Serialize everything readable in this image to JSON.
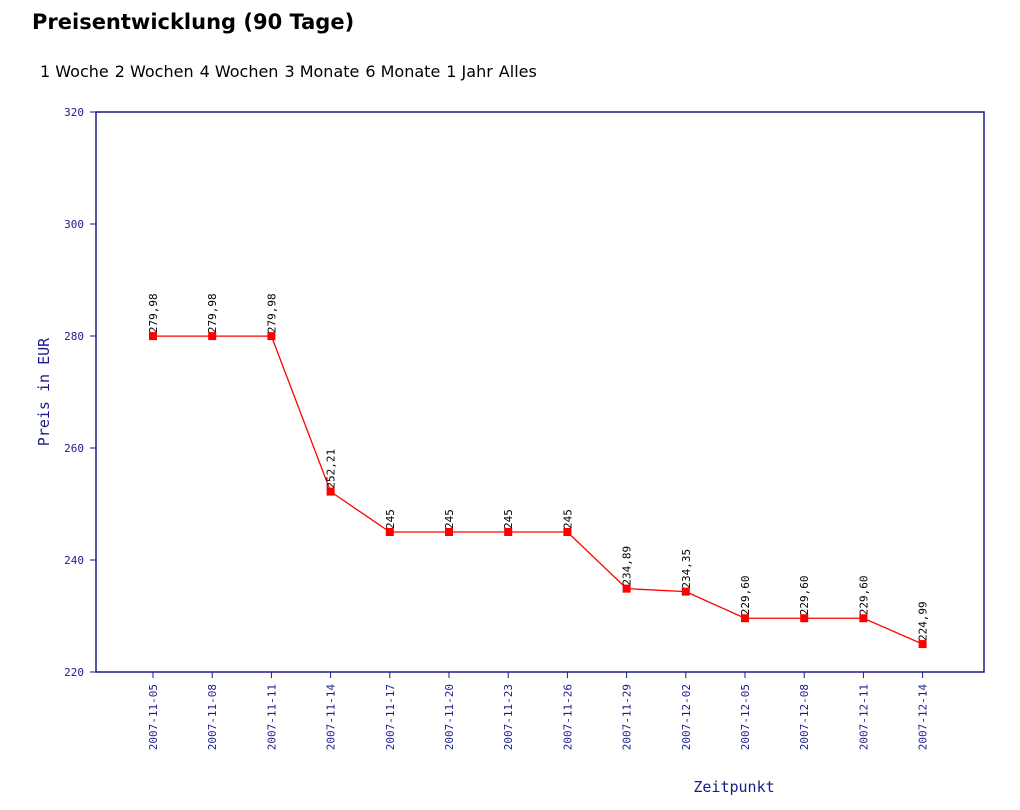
{
  "title": "Preisentwicklung (90 Tage)",
  "range_links": [
    "1 Woche",
    "2 Wochen",
    "4 Wochen",
    "3 Monate",
    "6 Monate",
    "1 Jahr",
    "Alles"
  ],
  "colors": {
    "axis": "#1a1a8c",
    "series": "#ff0000"
  },
  "chart_data": {
    "type": "line",
    "title": "",
    "xlabel": "Zeitpunkt",
    "ylabel": "Preis in EUR",
    "ylim": [
      220,
      320
    ],
    "yticks": [
      "220",
      "240",
      "260",
      "280",
      "300",
      "320"
    ],
    "x": [
      "2007-11-05",
      "2007-11-08",
      "2007-11-11",
      "2007-11-14",
      "2007-11-17",
      "2007-11-20",
      "2007-11-23",
      "2007-11-26",
      "2007-11-29",
      "2007-12-02",
      "2007-12-05",
      "2007-12-08",
      "2007-12-11",
      "2007-12-14"
    ],
    "values": [
      279.98,
      279.98,
      279.98,
      252.21,
      245,
      245,
      245,
      245,
      234.89,
      234.35,
      229.6,
      229.6,
      229.6,
      224.99
    ],
    "data_labels": [
      "279,98",
      "279,98",
      "279,98",
      "252,21",
      "245",
      "245",
      "245",
      "245",
      "234,89",
      "234,35",
      "229,60",
      "229,60",
      "229,60",
      "224,99"
    ],
    "grid": false,
    "legend": "none"
  }
}
